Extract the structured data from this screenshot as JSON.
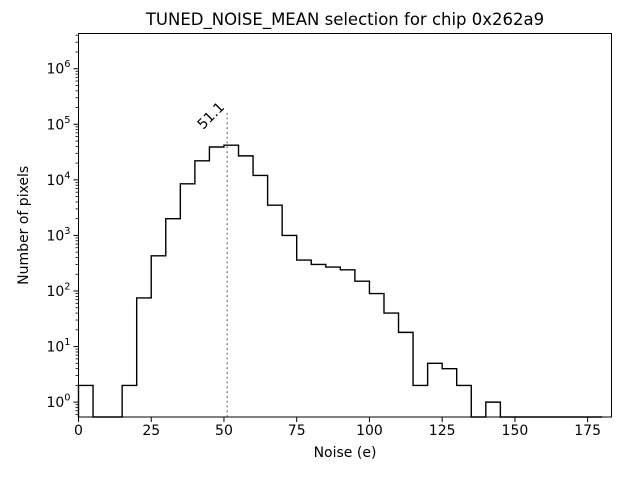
{
  "chart_data": {
    "type": "histogram",
    "histtype": "step",
    "title": "TUNED_NOISE_MEAN selection for chip 0x262a9",
    "xlabel": "Noise (e)",
    "ylabel": "Number of pixels",
    "yscale": "log",
    "bin_start": 0,
    "bin_width": 5,
    "counts": [
      2,
      0,
      0,
      2,
      75,
      430,
      2000,
      8500,
      22000,
      39000,
      42000,
      27000,
      12000,
      3500,
      1000,
      360,
      300,
      270,
      240,
      150,
      90,
      40,
      18,
      2,
      5,
      4,
      2,
      0,
      1,
      0,
      0,
      0,
      0,
      0,
      0,
      0
    ],
    "xlim": [
      0,
      183.2
    ],
    "ylim": [
      0.54,
      4300000
    ],
    "x_ticks": [
      0,
      25,
      50,
      75,
      100,
      125,
      150,
      175
    ],
    "y_tick_exponents": [
      0,
      1,
      2,
      3,
      4,
      5,
      6
    ],
    "grid": "off",
    "line_color": "#000000",
    "background_color": "#ffffff",
    "vline": {
      "x": 51.1,
      "label": "51.1",
      "top_value": 160000,
      "color": "#808080",
      "style": "dotted"
    }
  }
}
